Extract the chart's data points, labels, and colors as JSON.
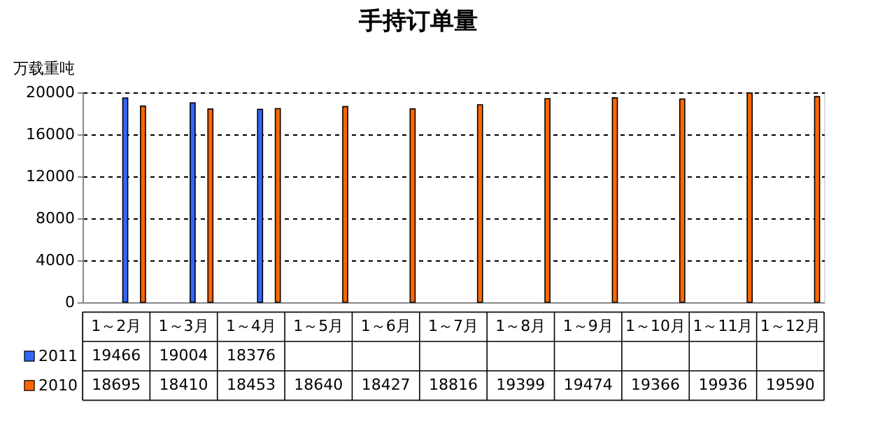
{
  "chart_data": {
    "type": "bar",
    "title": "手持订单量",
    "ylabel": "万载重吨",
    "categories": [
      "1～2月",
      "1～3月",
      "1～4月",
      "1～5月",
      "1～6月",
      "1～7月",
      "1～8月",
      "1～9月",
      "1～10月",
      "1～11月",
      "1～12月"
    ],
    "series": [
      {
        "name": "2011",
        "color": "#3366ff",
        "values": [
          19466,
          19004,
          18376,
          null,
          null,
          null,
          null,
          null,
          null,
          null,
          null
        ]
      },
      {
        "name": "2010",
        "color": "#ff6600",
        "values": [
          18695,
          18410,
          18453,
          18640,
          18427,
          18816,
          19399,
          19474,
          19366,
          19936,
          19590
        ]
      }
    ],
    "ylim": [
      0,
      20000
    ],
    "yticks": [
      0,
      4000,
      8000,
      12000,
      16000,
      20000
    ],
    "grid": "y",
    "data_labels": true,
    "legend": "bottom left"
  }
}
